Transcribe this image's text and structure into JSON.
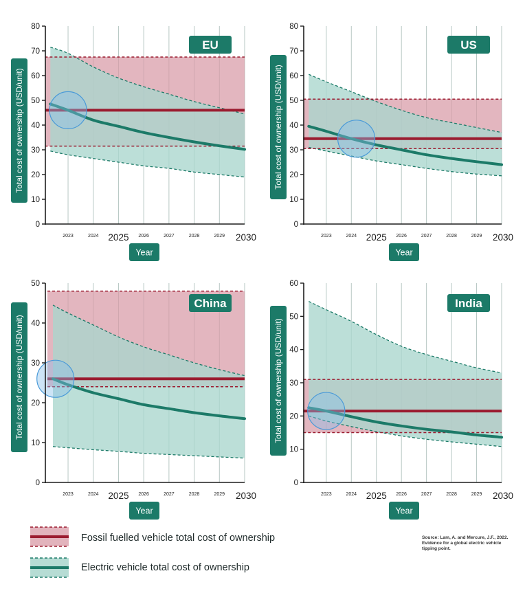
{
  "chart_data": [
    {
      "type": "area",
      "title": "EU",
      "xlabel": "Year",
      "ylabel": "Total cost of ownership (USD/unit)",
      "xlim": [
        2022.1,
        2030
      ],
      "ylim": [
        0,
        80
      ],
      "yticks": [
        0,
        10,
        20,
        30,
        40,
        50,
        60,
        70,
        80
      ],
      "xticks": [
        {
          "v": 2023,
          "l": "2023",
          "major": false
        },
        {
          "v": 2024,
          "l": "2024",
          "major": false
        },
        {
          "v": 2025,
          "l": "2025",
          "major": true
        },
        {
          "v": 2026,
          "l": "2026",
          "major": false
        },
        {
          "v": 2027,
          "l": "2027",
          "major": false
        },
        {
          "v": 2028,
          "l": "2028",
          "major": false
        },
        {
          "v": 2029,
          "l": "2029",
          "major": false
        },
        {
          "v": 2030,
          "l": "2030",
          "major": true
        }
      ],
      "x": [
        2022.3,
        2023,
        2024,
        2025,
        2026,
        2027,
        2028,
        2029,
        2030
      ],
      "fossil": {
        "value": 46,
        "low": 31.5,
        "high": 67.5
      },
      "ev_mean": [
        48.5,
        46,
        42,
        39.5,
        37,
        35,
        33.2,
        31.6,
        30.2
      ],
      "ev_high": [
        71.5,
        69,
        63.5,
        59,
        55.5,
        52.5,
        49.5,
        47,
        44.5
      ],
      "ev_low": [
        29.5,
        28,
        26.5,
        25,
        23.5,
        22.5,
        21,
        20,
        19
      ],
      "crossover": {
        "x": 2023,
        "y": 46
      }
    },
    {
      "type": "area",
      "title": "US",
      "xlabel": "Year",
      "ylabel": "Total cost of ownership (USD/unit)",
      "xlim": [
        2022.1,
        2030
      ],
      "ylim": [
        0,
        80
      ],
      "yticks": [
        0,
        10,
        20,
        30,
        40,
        50,
        60,
        70,
        80
      ],
      "xticks": [
        {
          "v": 2023,
          "l": "2023",
          "major": false
        },
        {
          "v": 2024,
          "l": "2024",
          "major": false
        },
        {
          "v": 2025,
          "l": "2025",
          "major": true
        },
        {
          "v": 2026,
          "l": "2026",
          "major": false
        },
        {
          "v": 2027,
          "l": "2027",
          "major": false
        },
        {
          "v": 2028,
          "l": "2028",
          "major": false
        },
        {
          "v": 2029,
          "l": "2029",
          "major": false
        },
        {
          "v": 2030,
          "l": "2030",
          "major": true
        }
      ],
      "x": [
        2022.3,
        2023,
        2024,
        2025,
        2026,
        2027,
        2028,
        2029,
        2030
      ],
      "fossil": {
        "value": 34.5,
        "low": 30.5,
        "high": 50.5
      },
      "ev_mean": [
        39.5,
        37.5,
        34.5,
        32,
        30,
        28,
        26.5,
        25.2,
        24
      ],
      "ev_high": [
        60.5,
        57.5,
        53.5,
        49.5,
        46,
        43,
        41,
        39,
        37
      ],
      "ev_low": [
        31,
        29.5,
        27.5,
        25.5,
        24,
        22.5,
        21.2,
        20.2,
        19.5
      ],
      "crossover": {
        "x": 2024.2,
        "y": 34.5
      }
    },
    {
      "type": "area",
      "title": "China",
      "xlabel": "Year",
      "ylabel": "Total cost of ownership (USD/unit)",
      "xlim": [
        2022.1,
        2030
      ],
      "ylim": [
        0,
        50
      ],
      "yticks": [
        0,
        10,
        20,
        30,
        40,
        50
      ],
      "xticks": [
        {
          "v": 2023,
          "l": "2023",
          "major": false
        },
        {
          "v": 2024,
          "l": "2024",
          "major": false
        },
        {
          "v": 2025,
          "l": "2025",
          "major": true
        },
        {
          "v": 2026,
          "l": "2026",
          "major": false
        },
        {
          "v": 2027,
          "l": "2027",
          "major": false
        },
        {
          "v": 2028,
          "l": "2028",
          "major": false
        },
        {
          "v": 2029,
          "l": "2029",
          "major": false
        },
        {
          "v": 2030,
          "l": "2030",
          "major": true
        }
      ],
      "x": [
        2022.4,
        2023,
        2024,
        2025,
        2026,
        2027,
        2028,
        2029,
        2030
      ],
      "fossil": {
        "value": 26,
        "low": 24,
        "high": 48
      },
      "ev_mean": [
        26,
        24.5,
        22.5,
        21,
        19.5,
        18.5,
        17.5,
        16.7,
        16
      ],
      "ev_high": [
        44.5,
        42.5,
        39.5,
        36.5,
        34,
        32,
        30,
        28.3,
        26.8
      ],
      "ev_low": [
        9,
        8.7,
        8.2,
        7.8,
        7.3,
        7,
        6.7,
        6.4,
        6.1
      ],
      "crossover": {
        "x": 2022.5,
        "y": 26
      }
    },
    {
      "type": "area",
      "title": "India",
      "xlabel": "Year",
      "ylabel": "Total cost of ownership (USD/unit)",
      "xlim": [
        2022.1,
        2030
      ],
      "ylim": [
        0,
        60
      ],
      "yticks": [
        0,
        10,
        20,
        30,
        40,
        50,
        60
      ],
      "xticks": [
        {
          "v": 2023,
          "l": "2023",
          "major": false
        },
        {
          "v": 2024,
          "l": "2024",
          "major": false
        },
        {
          "v": 2025,
          "l": "2025",
          "major": true
        },
        {
          "v": 2026,
          "l": "2026",
          "major": false
        },
        {
          "v": 2027,
          "l": "2027",
          "major": false
        },
        {
          "v": 2028,
          "l": "2028",
          "major": false
        },
        {
          "v": 2029,
          "l": "2029",
          "major": false
        },
        {
          "v": 2030,
          "l": "2030",
          "major": true
        }
      ],
      "x": [
        2022.3,
        2023,
        2024,
        2025,
        2026,
        2027,
        2028,
        2029,
        2030
      ],
      "fossil": {
        "value": 21.5,
        "low": 15,
        "high": 31
      },
      "ev_mean": [
        22.5,
        21.5,
        19.8,
        18.2,
        17,
        16,
        15.2,
        14.3,
        13.6
      ],
      "ev_high": [
        54.5,
        52,
        48.5,
        44.5,
        41,
        38.5,
        36.5,
        34.5,
        33
      ],
      "ev_low": [
        20,
        18.5,
        16.8,
        15.3,
        14,
        13,
        12.2,
        11.5,
        10.8
      ],
      "crossover": {
        "x": 2023,
        "y": 21.5
      }
    }
  ],
  "legend": {
    "fossil_label": "Fossil fuelled vehicle total cost of ownership",
    "ev_label": "Electric vehicle total cost of ownership"
  },
  "source": "Source: Lam, A. and Mercure, J.F., 2022. Evidence for a global electric vehicle tipping point.",
  "colors": {
    "ev": "#1c7a68",
    "ev_band": "#a9d6cd",
    "fossil": "#9b1b2f",
    "fossil_band": "#d89aa6",
    "grid": "#b7c7c3",
    "highlight": "#89bfe9"
  }
}
